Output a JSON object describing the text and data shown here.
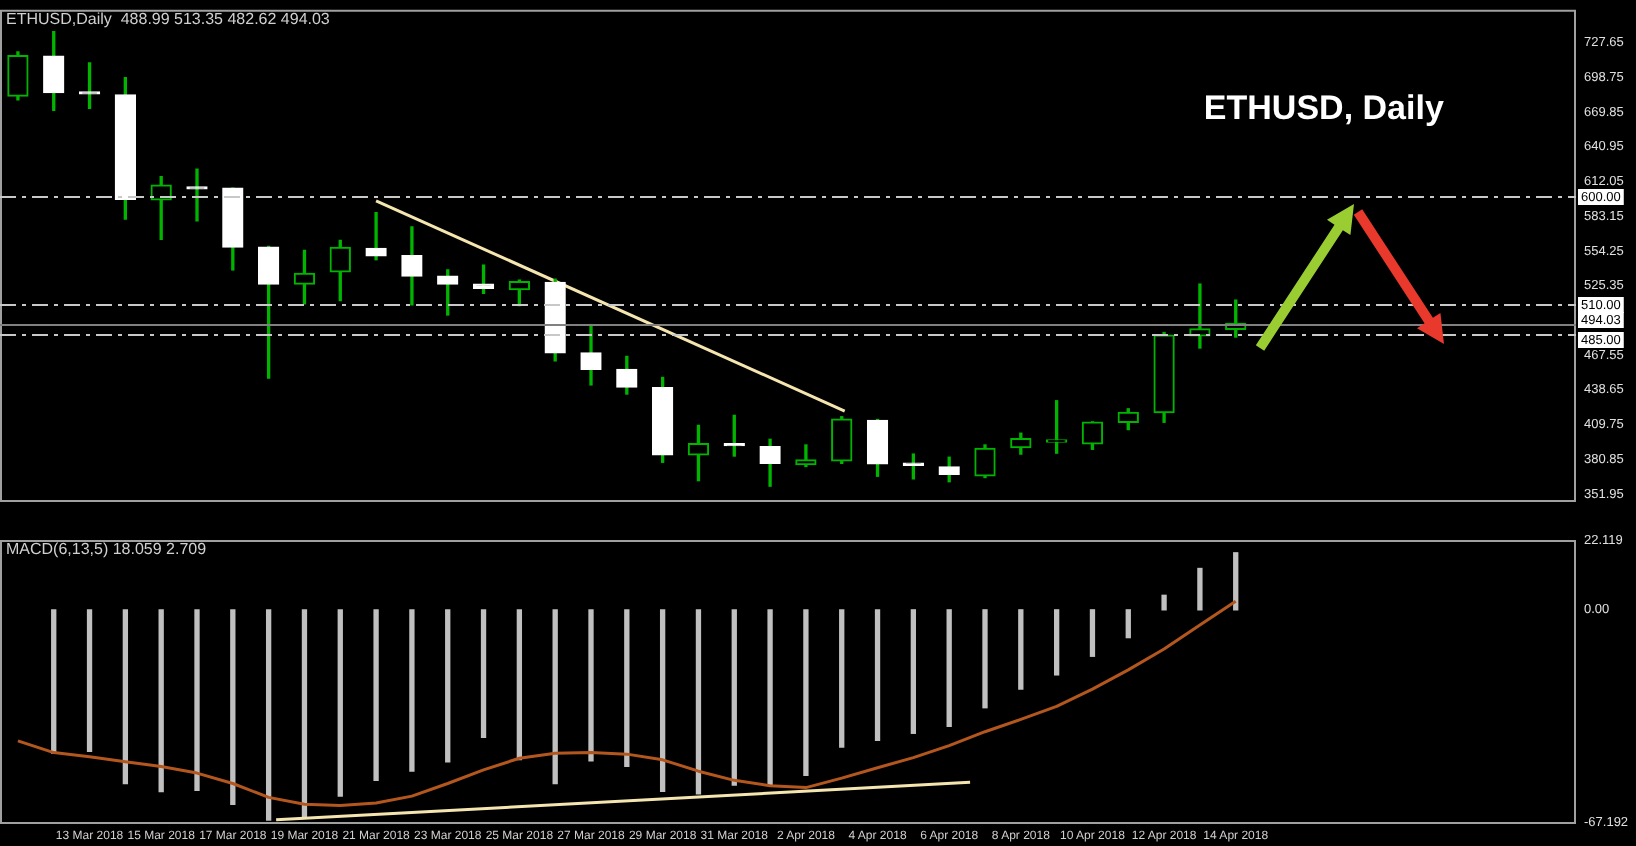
{
  "chart_data": [
    {
      "type": "candlestick",
      "color": "#00b400",
      "colors": [
        "#00b400",
        "#ffffff",
        "#ffffff",
        "#ffffff",
        "#00b400",
        "#ffffff",
        "#ffffff",
        "#ffffff",
        "#00b400",
        "#00b400",
        "#ffffff",
        "#ffffff",
        "#ffffff",
        "#ffffff",
        "#00b400",
        "#ffffff",
        "#ffffff",
        "#ffffff",
        "#ffffff",
        "#00b400",
        "#ffffff",
        "#ffffff",
        "#00b400",
        "#00b400",
        "#ffffff",
        "#ffffff",
        "#ffffff",
        "#00b400",
        "#00b400",
        "#00b400",
        "#00b400",
        "#00b400",
        "#00b400",
        "#00b400",
        "#00b400"
      ],
      "x": [
        "2018-03-11",
        "2018-03-12",
        "2018-03-13",
        "2018-03-14",
        "2018-03-15",
        "2018-03-16",
        "2018-03-17",
        "2018-03-18",
        "2018-03-19",
        "2018-03-20",
        "2018-03-21",
        "2018-03-22",
        "2018-03-23",
        "2018-03-24",
        "2018-03-25",
        "2018-03-26",
        "2018-03-27",
        "2018-03-28",
        "2018-03-29",
        "2018-03-30",
        "2018-03-31",
        "2018-04-01",
        "2018-04-02",
        "2018-04-03",
        "2018-04-04",
        "2018-04-05",
        "2018-04-06",
        "2018-04-07",
        "2018-04-08",
        "2018-04-09",
        "2018-04-10",
        "2018-04-11",
        "2018-04-12",
        "2018-04-13",
        "2018-04-14"
      ],
      "ohlc": [
        [
          683.2,
          720,
          680,
          716.9
        ],
        [
          716.5,
          736.9,
          671.4,
          686
        ],
        [
          686,
          710.8,
          672.9,
          685
        ],
        [
          684.2,
          698.5,
          580.9,
          597.3
        ],
        [
          596.8,
          616.2,
          564,
          609.1
        ],
        [
          607,
          622.3,
          579.3,
          606
        ],
        [
          606.5,
          606.5,
          538.5,
          557.4
        ],
        [
          557.4,
          558,
          448.5,
          526.7
        ],
        [
          526.7,
          554.8,
          510.3,
          535.5
        ],
        [
          537,
          563.1,
          513,
          557.3
        ],
        [
          556.4,
          586.1,
          547,
          550.3
        ],
        [
          550.3,
          574.3,
          509.4,
          533.3
        ],
        [
          533.3,
          538.5,
          501,
          526.7
        ],
        [
          526.7,
          542.5,
          519,
          523.2
        ],
        [
          522.1,
          530,
          508.8,
          528.7
        ],
        [
          528.2,
          530.8,
          462.8,
          469.5
        ],
        [
          469.5,
          493,
          442.8,
          455.7
        ],
        [
          455.7,
          466.5,
          435.2,
          440.9
        ],
        [
          440.4,
          449,
          378.4,
          384.6
        ],
        [
          384.6,
          409.1,
          363.1,
          393.8
        ],
        [
          393.3,
          417.4,
          383.6,
          392.3
        ],
        [
          391.3,
          397.5,
          358.5,
          377.5
        ],
        [
          376.4,
          392.8,
          374.9,
          380.3
        ],
        [
          379.5,
          416.3,
          377.5,
          414.3
        ],
        [
          413.2,
          414,
          366.8,
          377
        ],
        [
          376.5,
          385.2,
          364.6,
          375.9
        ],
        [
          374.5,
          382.6,
          362.2,
          368.3
        ],
        [
          367.2,
          392.8,
          365.7,
          389.9
        ],
        [
          390.6,
          402.6,
          385.2,
          398
        ],
        [
          395.3,
          429.6,
          386,
          396
        ],
        [
          393.8,
          412,
          389.2,
          411.7
        ],
        [
          411.7,
          422.9,
          405.6,
          419.8
        ],
        [
          419.8,
          486.4,
          411.7,
          484.2
        ],
        [
          483.6,
          526.7,
          473.5,
          489.4
        ],
        [
          488.99,
          513.35,
          482.62,
          494.03
        ]
      ],
      "series": [
        {
          "type": "line",
          "x": [
            "2018-03-21",
            "2018-04-03T02:00"
          ],
          "values": [
            596,
            421
          ],
          "color": "#f5e6b0"
        }
      ],
      "xlim": [
        "2018-03-10T12:00",
        "2018-04-23T12:00"
      ],
      "ylim": [
        347,
        755
      ],
      "yticks": [
        727.65,
        698.75,
        669.85,
        640.95,
        612.05,
        583.15,
        554.25,
        525.35,
        467.55,
        438.65,
        409.75,
        380.85,
        351.95
      ],
      "tick_labels": "y",
      "ref_lines": [
        {
          "axis": "y",
          "value": 600,
          "label": "600.00",
          "color": "#c8c8c8",
          "line_style": "dashed"
        },
        {
          "axis": "y",
          "value": 510,
          "label": "510.00",
          "color": "#c8c8c8",
          "line_style": "dashed"
        },
        {
          "axis": "y",
          "value": 494.03,
          "label": "494.03",
          "color": "#808080",
          "line_style": "solid"
        },
        {
          "axis": "y",
          "value": 485,
          "label": "485.00",
          "color": "#c8c8c8",
          "line_style": "dashed"
        }
      ],
      "annotations": [
        "ETHUSD,Daily  488.99 513.35 482.62 494.03",
        "ETHUSD, Daily"
      ]
    },
    {
      "type": "bar",
      "x": [
        "2018-03-11",
        "2018-03-12",
        "2018-03-13",
        "2018-03-14",
        "2018-03-15",
        "2018-03-16",
        "2018-03-17",
        "2018-03-18",
        "2018-03-19",
        "2018-03-20",
        "2018-03-21",
        "2018-03-22",
        "2018-03-23",
        "2018-03-24",
        "2018-03-25",
        "2018-03-26",
        "2018-03-27",
        "2018-03-28",
        "2018-03-29",
        "2018-03-30",
        "2018-03-31",
        "2018-04-01",
        "2018-04-02",
        "2018-04-03",
        "2018-04-04",
        "2018-04-05",
        "2018-04-06",
        "2018-04-07",
        "2018-04-08",
        "2018-04-09",
        "2018-04-10",
        "2018-04-11",
        "2018-04-12",
        "2018-04-13",
        "2018-04-14"
      ],
      "series": [
        {
          "type": "bar",
          "color": "#c0c0c0",
          "values": [
            null,
            -45.4,
            -44.8,
            -55,
            -57.6,
            -57.2,
            -61.6,
            -66.6,
            -65.5,
            -59,
            -54,
            -51.1,
            -48.1,
            -40.4,
            -47.4,
            -55,
            -47.8,
            -49.6,
            -57.5,
            -58.3,
            -55.5,
            -55.5,
            -52.4,
            -43.5,
            -41.3,
            -39.1,
            -36.9,
            -31,
            -25.1,
            -20.6,
            -14.7,
            -8.8,
            4.6,
            13.1,
            18.059
          ]
        },
        {
          "type": "line",
          "color": "#b4571e",
          "values": [
            -41.5,
            -45.2,
            -46.5,
            -48.1,
            -49.6,
            -51.7,
            -55,
            -59.4,
            -61.6,
            -62,
            -61.2,
            -59,
            -55,
            -50.7,
            -47,
            -45.4,
            -45.2,
            -45.7,
            -47.5,
            -51.1,
            -54,
            -55.7,
            -56.3,
            -53.3,
            -50,
            -46.8,
            -43,
            -38.6,
            -34.7,
            -30.6,
            -25.1,
            -19,
            -12.4,
            -4.8,
            2.709
          ]
        },
        {
          "type": "line",
          "x": [
            "2018-03-18T05:00",
            "2018-04-06T14:00"
          ],
          "values": [
            -66.5,
            -54.6
          ],
          "color": "#f5e6b0"
        }
      ],
      "xlim": [
        "2018-03-10T12:00",
        "2018-04-23T12:00"
      ],
      "xticks": [
        {
          "value": "2018-03-13",
          "label": "13 Mar 2018"
        },
        {
          "value": "2018-03-15",
          "label": "15 Mar 2018"
        },
        {
          "value": "2018-03-17",
          "label": "17 Mar 2018"
        },
        {
          "value": "2018-03-19",
          "label": "19 Mar 2018"
        },
        {
          "value": "2018-03-21",
          "label": "21 Mar 2018"
        },
        {
          "value": "2018-03-23",
          "label": "23 Mar 2018"
        },
        {
          "value": "2018-03-25",
          "label": "25 Mar 2018"
        },
        {
          "value": "2018-03-27",
          "label": "27 Mar 2018"
        },
        {
          "value": "2018-03-29",
          "label": "29 Mar 2018"
        },
        {
          "value": "2018-03-31",
          "label": "31 Mar 2018"
        },
        {
          "value": "2018-04-02",
          "label": "2 Apr 2018"
        },
        {
          "value": "2018-04-04",
          "label": "4 Apr 2018"
        },
        {
          "value": "2018-04-06",
          "label": "6 Apr 2018"
        },
        {
          "value": "2018-04-08",
          "label": "8 Apr 2018"
        },
        {
          "value": "2018-04-10",
          "label": "10 Apr 2018"
        },
        {
          "value": "2018-04-12",
          "label": "12 Apr 2018"
        },
        {
          "value": "2018-04-14",
          "label": "14 Apr 2018"
        }
      ],
      "ylim": [
        -67.192,
        22.119
      ],
      "yticks": [
        22.119,
        {
          "value": 0,
          "label": "0.00"
        },
        -67.192
      ],
      "annotations": [
        "MACD(6,13,5) 18.059 2.709"
      ]
    }
  ]
}
